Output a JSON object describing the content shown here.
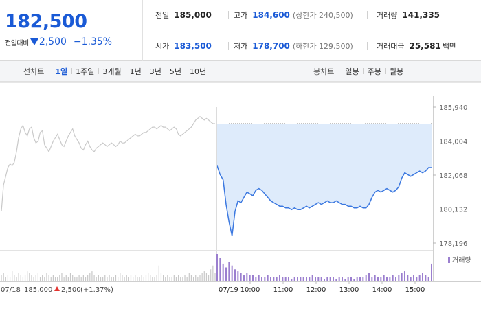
{
  "quote": {
    "price": "182,500",
    "change_label": "전일대비",
    "change_value": "2,500",
    "change_rate": "−1.35%",
    "change_direction": "down",
    "color_down": "#1a5ad6",
    "color_up": "#e3342f"
  },
  "info": {
    "prev_close": {
      "label": "전일",
      "value": "185,000"
    },
    "high": {
      "label": "고가",
      "value": "184,600",
      "sub": "(상한가 240,500)"
    },
    "volume": {
      "label": "거래량",
      "value": "141,335"
    },
    "open": {
      "label": "시가",
      "value": "183,500"
    },
    "low": {
      "label": "저가",
      "value": "178,700",
      "sub": "(하한가 129,500)"
    },
    "amount": {
      "label": "거래대금",
      "value": "25,581",
      "unit": "백만"
    }
  },
  "toolbar": {
    "line_label": "선차트",
    "line_periods": [
      "1일",
      "1주일",
      "3개월",
      "1년",
      "3년",
      "5년",
      "10년"
    ],
    "line_active": "1일",
    "candle_label": "봉차트",
    "candle_periods": [
      "일봉",
      "주봉",
      "월봉"
    ]
  },
  "chart_data": {
    "type": "line",
    "y_ticks": [
      "185,940",
      "184,004",
      "182,068",
      "180,132",
      "178,196"
    ],
    "ylim": [
      178196,
      185940
    ],
    "prev_close_price": 185000,
    "legend": "거래량",
    "prev_day": {
      "date_label": "07/18",
      "close_label": "185,000",
      "change_label": "2,500",
      "rate_label": "(+1.37%)",
      "color": "#c9c9c9",
      "values": [
        180000,
        181500,
        182000,
        182500,
        182700,
        182600,
        182800,
        183400,
        184200,
        184700,
        184900,
        184500,
        184300,
        184700,
        184800,
        184200,
        183900,
        184000,
        184500,
        184600,
        183800,
        183600,
        183400,
        183700,
        184000,
        184200,
        184400,
        184100,
        183800,
        183700,
        184000,
        184300,
        184500,
        184700,
        184300,
        184100,
        183900,
        183600,
        183500,
        183800,
        184000,
        183700,
        183500,
        183400,
        183600,
        183700,
        183800,
        183900,
        183800,
        183700,
        183800,
        183900,
        183800,
        183700,
        183800,
        184000,
        183900,
        183900,
        184000,
        184100,
        184200,
        184300,
        184400,
        184300,
        184300,
        184400,
        184500,
        184500,
        184600,
        184700,
        184800,
        184800,
        184700,
        184800,
        184900,
        184800,
        184800,
        184700,
        184600,
        184700,
        184800,
        184700,
        184400,
        184300,
        184400,
        184500,
        184600,
        184700,
        184800,
        185000,
        185200,
        185300,
        185400,
        185300,
        185200,
        185300,
        185200,
        185100,
        185000,
        185000
      ]
    },
    "today": {
      "date_label": "07/19",
      "color": "#3b78e0",
      "fill": "#deebfb",
      "x_ticks": [
        "10:00",
        "11:00",
        "12:00",
        "13:00",
        "14:00",
        "15:00"
      ],
      "values": [
        182600,
        182100,
        181800,
        180400,
        179400,
        178600,
        180000,
        180600,
        180500,
        180800,
        181100,
        181000,
        180900,
        181200,
        181300,
        181200,
        181000,
        180800,
        180600,
        180500,
        180400,
        180300,
        180300,
        180200,
        180200,
        180100,
        180200,
        180100,
        180100,
        180200,
        180300,
        180200,
        180300,
        180400,
        180500,
        180400,
        180500,
        180600,
        180500,
        180500,
        180600,
        180500,
        180400,
        180400,
        180300,
        180300,
        180200,
        180200,
        180300,
        180200,
        180200,
        180400,
        180800,
        181100,
        181200,
        181100,
        181200,
        181300,
        181200,
        181100,
        181200,
        181400,
        181900,
        182200,
        182100,
        182000,
        182100,
        182200,
        182300,
        182200,
        182300,
        182500,
        182500
      ]
    },
    "volume": {
      "prev_day": [
        3,
        4,
        2,
        3,
        2,
        5,
        3,
        2,
        4,
        3,
        2,
        3,
        5,
        4,
        3,
        2,
        3,
        4,
        2,
        3,
        2,
        4,
        3,
        2,
        3,
        2,
        2,
        3,
        4,
        2,
        3,
        2,
        4,
        3,
        2,
        2,
        3,
        2,
        3,
        2,
        3,
        4,
        5,
        3,
        2,
        3,
        2,
        2,
        3,
        2,
        3,
        2,
        2,
        3,
        2,
        4,
        3,
        2,
        3,
        2,
        3,
        2,
        3,
        2,
        2,
        3,
        2,
        3,
        4,
        3,
        2,
        2,
        3,
        8,
        4,
        3,
        2,
        3,
        2,
        2,
        3,
        2,
        3,
        2,
        2,
        3,
        2,
        4,
        3,
        2,
        3,
        2,
        3,
        4,
        5,
        4,
        3,
        6,
        8,
        4
      ],
      "today": [
        14,
        12,
        9,
        7,
        10,
        8,
        6,
        5,
        4,
        3,
        4,
        3,
        3,
        2,
        3,
        2,
        2,
        3,
        2,
        2,
        2,
        3,
        2,
        2,
        2,
        1,
        2,
        2,
        2,
        2,
        2,
        2,
        3,
        2,
        2,
        2,
        1,
        2,
        2,
        2,
        1,
        2,
        2,
        1,
        2,
        2,
        1,
        2,
        2,
        2,
        3,
        4,
        2,
        3,
        2,
        2,
        3,
        2,
        2,
        3,
        2,
        3,
        4,
        5,
        3,
        2,
        3,
        2,
        3,
        4,
        3,
        2,
        9
      ]
    }
  }
}
